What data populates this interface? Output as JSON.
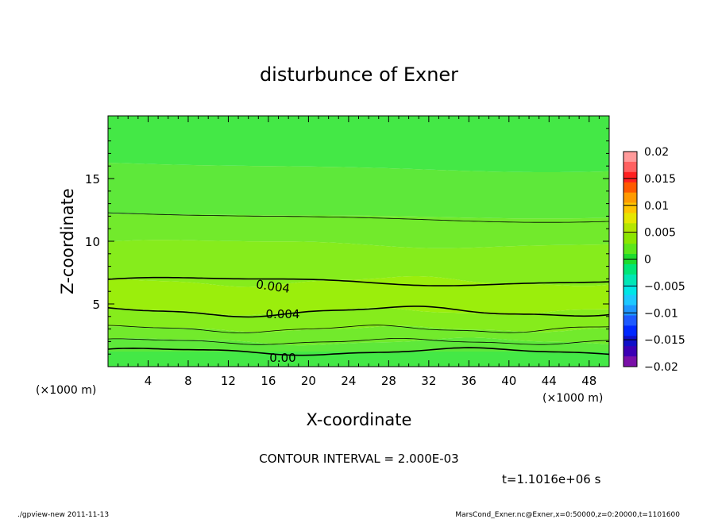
{
  "chart_data": {
    "type": "contour",
    "title": "disturbunce of Exner",
    "xlabel": "X-coordinate",
    "ylabel": "Z-coordinate",
    "x_unit_left": "(×1000 m)",
    "x_unit_right": "(×1000 m)",
    "xlim": [
      0,
      50
    ],
    "ylim": [
      0,
      20
    ],
    "xticks": [
      4,
      8,
      12,
      16,
      20,
      24,
      28,
      32,
      36,
      40,
      44,
      48
    ],
    "yticks": [
      5,
      10,
      15
    ],
    "colorbar": {
      "ticks": [
        "0.02",
        "0.015",
        "0.01",
        "0.005",
        "0",
        "−0.005",
        "−0.01",
        "−0.015",
        "−0.02"
      ],
      "range": [
        -0.02,
        0.02
      ],
      "colors": [
        "#ff9a9a",
        "#ff6060",
        "#ff2020",
        "#ff5a00",
        "#ff9a00",
        "#ffc400",
        "#e6e600",
        "#b4e600",
        "#8be600",
        "#5ce61a",
        "#1edc2e",
        "#00e676",
        "#00e6b4",
        "#00e6e6",
        "#1ec8ff",
        "#1e96ff",
        "#1e5aff",
        "#0028ff",
        "#1010c8",
        "#3c00b4",
        "#7a10a8"
      ]
    },
    "contour_labels": [
      "0.004",
      "0.004",
      "0.00"
    ],
    "bands": [
      {
        "z_low": 0,
        "z_high": 1.2,
        "level": "0.000"
      },
      {
        "z_low": 1.2,
        "z_high": 2.0,
        "level": "0.001"
      },
      {
        "z_low": 2.0,
        "z_high": 3.0,
        "level": "0.002"
      },
      {
        "z_low": 3.0,
        "z_high": 4.4,
        "level": "0.003"
      },
      {
        "z_low": 4.4,
        "z_high": 6.8,
        "level": "0.004"
      },
      {
        "z_low": 6.8,
        "z_high": 9.8,
        "level": "0.003"
      },
      {
        "z_low": 9.8,
        "z_high": 12.0,
        "level": "0.002"
      },
      {
        "z_low": 12.0,
        "z_high": 16.0,
        "level": "0.001"
      },
      {
        "z_low": 16.0,
        "z_high": 20.0,
        "level": "0.000"
      }
    ]
  },
  "contour_interval": "CONTOUR INTERVAL = 2.000E-03",
  "time_label": "t=1.1016e+06 s",
  "footer_left": "./gpview-new   2011-11-13",
  "footer_right": "MarsCond_Exner.nc@Exner,x=0:50000,z=0:20000,t=1101600",
  "colors": {
    "band_0": "#44e846",
    "band_1": "#5ee83a",
    "band_2": "#72ea2c",
    "band_3": "#86ec1c",
    "band_4": "#9bee0c",
    "band_5": "#86ec1c",
    "band_6": "#72ea2c",
    "band_7": "#5ee83a",
    "band_8": "#44e846"
  }
}
